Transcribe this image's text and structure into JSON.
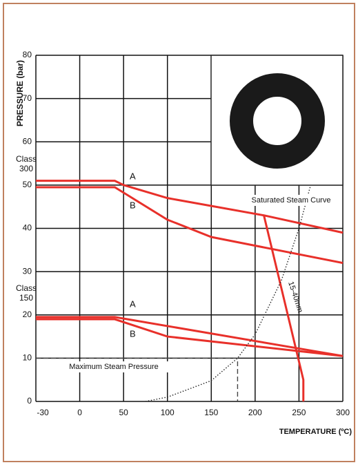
{
  "chart_data": {
    "type": "line",
    "y_label": "PRESSURE (bar)",
    "x_label": "TEMPERATURE (ºC)",
    "xlim": [
      -30,
      300
    ],
    "xticks": [
      -30,
      0,
      50,
      100,
      150,
      200,
      250,
      300
    ],
    "ylim": [
      0,
      80
    ],
    "yticks": [
      0,
      10,
      20,
      30,
      40,
      50,
      60,
      70,
      80
    ],
    "grid": true,
    "class_labels": [
      [
        "Class",
        "300"
      ],
      [
        "Class",
        "150"
      ]
    ],
    "series": [
      {
        "name": "A",
        "color": "#e8302a",
        "style": "solid",
        "x": [
          -30,
          40,
          50,
          100,
          210,
          300
        ],
        "values": [
          51,
          51,
          50,
          47,
          43,
          39
        ]
      },
      {
        "name": "B",
        "color": "#e8302a",
        "style": "solid",
        "x": [
          -30,
          40,
          100,
          150,
          300
        ],
        "values": [
          49.5,
          49.5,
          42,
          38,
          32
        ]
      },
      {
        "name": "A",
        "color": "#e8302a",
        "style": "solid",
        "x": [
          -30,
          40,
          300
        ],
        "values": [
          19.5,
          19.5,
          10.5
        ]
      },
      {
        "name": "B",
        "color": "#e8302a",
        "style": "solid",
        "x": [
          -30,
          40,
          100,
          300
        ],
        "values": [
          19,
          19,
          15,
          10.5
        ]
      },
      {
        "name": "15-40mm",
        "color": "#e8302a",
        "style": "solid",
        "x": [
          210,
          255,
          255
        ],
        "values": [
          43,
          5,
          0
        ]
      },
      {
        "name": "Saturated Steam Curve",
        "color": "#222222",
        "style": "dotted",
        "x": [
          75,
          100,
          150,
          180,
          200,
          230,
          250,
          270
        ],
        "values": [
          0,
          1,
          4.8,
          10,
          15.5,
          28,
          40,
          55
        ]
      },
      {
        "name": "Maximum Steam Pressure",
        "color": "#444444",
        "style": "dashed",
        "x": [
          -30,
          180,
          180
        ],
        "values": [
          10,
          10,
          0
        ]
      }
    ]
  }
}
